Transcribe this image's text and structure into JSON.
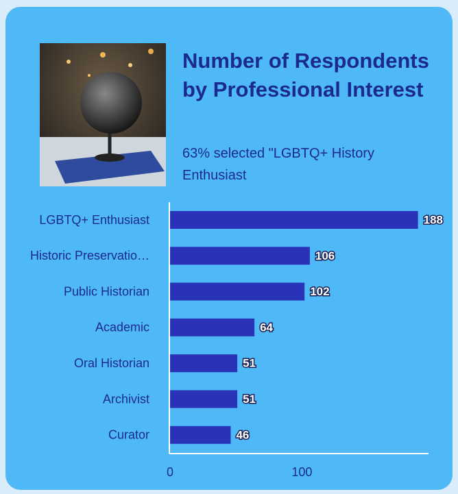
{
  "chart_data": {
    "type": "barh",
    "title": "Number of Respondents by Professional Interest",
    "subtitle": "63% selected \"LGBTQ+ History Enthusiast",
    "categories": [
      "LGBTQ+ Enthusiast",
      "Historic Preservatio…",
      "Public Historian",
      "Academic",
      "Oral Historian",
      "Archivist",
      "Curator"
    ],
    "values": [
      188,
      106,
      102,
      64,
      51,
      51,
      46
    ],
    "color": "#2a33b8",
    "xlim": [
      0,
      196
    ],
    "xticks": [
      0,
      100
    ]
  }
}
